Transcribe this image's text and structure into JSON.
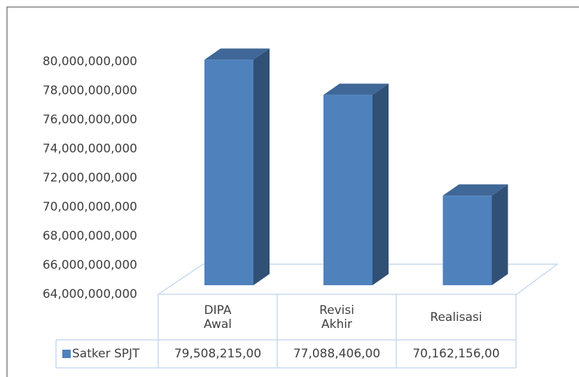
{
  "chart_data": {
    "type": "bar3d",
    "categories": [
      "DIPA Awal",
      "Revisi Akhir",
      "Realisasi"
    ],
    "series": [
      {
        "name": "Satker SPJT",
        "color": "#4f81bd",
        "values": [
          79508215000,
          77088406000,
          70162156000
        ],
        "value_labels": [
          "79,508,215,00",
          "77,088,406,00",
          "70,162,156,00"
        ]
      }
    ],
    "ylim": [
      64000000000,
      80000000000
    ],
    "yticks": [
      {
        "value": 64000000000,
        "label": "64,000,000,000"
      },
      {
        "value": 66000000000,
        "label": "66,000,000,000"
      },
      {
        "value": 68000000000,
        "label": "68,000,000,000"
      },
      {
        "value": 70000000000,
        "label": "70,000,000,000"
      },
      {
        "value": 72000000000,
        "label": "72,000,000,000"
      },
      {
        "value": 74000000000,
        "label": "74,000,000,000"
      },
      {
        "value": 76000000000,
        "label": "76,000,000,000"
      },
      {
        "value": 78000000000,
        "label": "78,000,000,000"
      },
      {
        "value": 80000000000,
        "label": "80,000,000,000"
      }
    ],
    "grid": false
  }
}
